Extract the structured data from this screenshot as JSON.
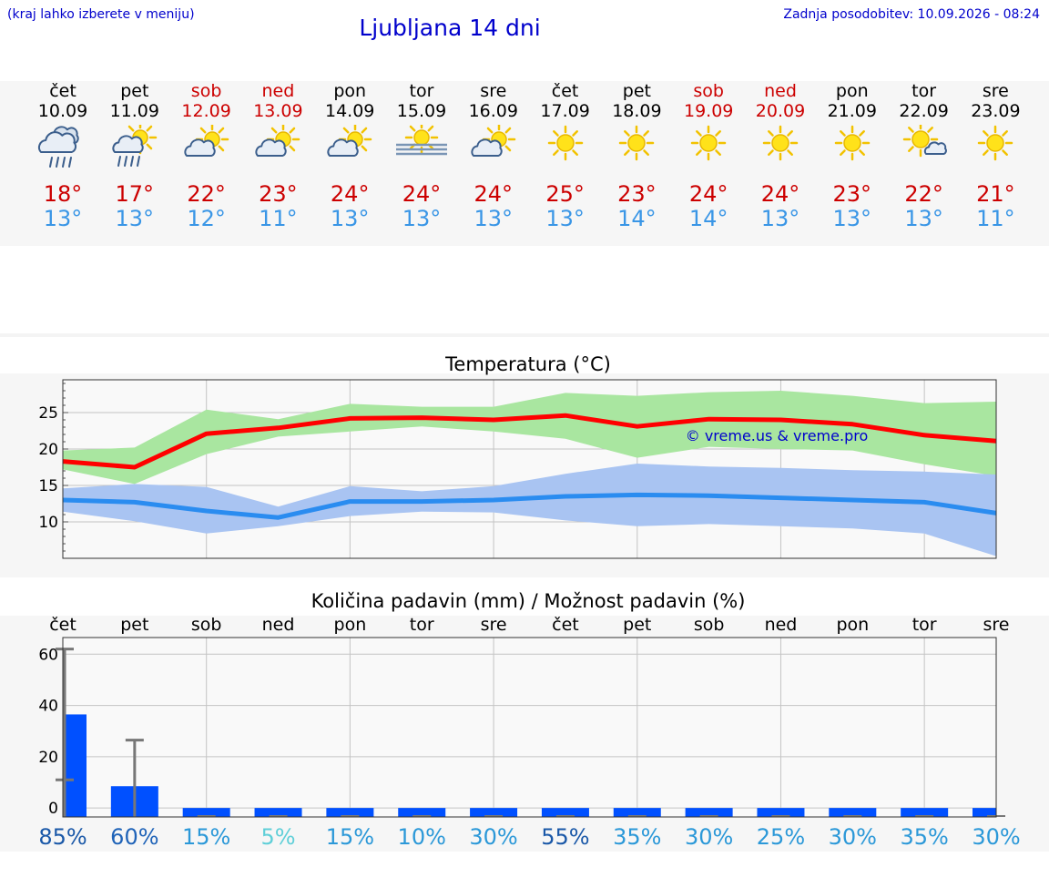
{
  "header": {
    "hint": "(kraj lahko izberete v meniju)",
    "title": "Ljubljana 14 dni",
    "updated": "Zadnja posodobitev: 10.09.2026 - 08:24"
  },
  "days": [
    {
      "name": "čet",
      "date": "10.09",
      "weekend": false,
      "icon": "rain-cloud-icon",
      "max": "18°",
      "min": "13°"
    },
    {
      "name": "pet",
      "date": "11.09",
      "weekend": false,
      "icon": "sun-rain-icon",
      "max": "17°",
      "min": "13°"
    },
    {
      "name": "sob",
      "date": "12.09",
      "weekend": true,
      "icon": "sun-cloud-icon",
      "max": "22°",
      "min": "12°"
    },
    {
      "name": "ned",
      "date": "13.09",
      "weekend": true,
      "icon": "sun-cloud-icon",
      "max": "23°",
      "min": "11°"
    },
    {
      "name": "pon",
      "date": "14.09",
      "weekend": false,
      "icon": "sun-cloud-icon",
      "max": "24°",
      "min": "13°"
    },
    {
      "name": "tor",
      "date": "15.09",
      "weekend": false,
      "icon": "sun-fog-icon",
      "max": "24°",
      "min": "13°"
    },
    {
      "name": "sre",
      "date": "16.09",
      "weekend": false,
      "icon": "sun-cloud-icon",
      "max": "24°",
      "min": "13°"
    },
    {
      "name": "čet",
      "date": "17.09",
      "weekend": false,
      "icon": "sun-icon",
      "max": "25°",
      "min": "13°"
    },
    {
      "name": "pet",
      "date": "18.09",
      "weekend": false,
      "icon": "sun-icon",
      "max": "23°",
      "min": "14°"
    },
    {
      "name": "sob",
      "date": "19.09",
      "weekend": true,
      "icon": "sun-icon",
      "max": "24°",
      "min": "14°"
    },
    {
      "name": "ned",
      "date": "20.09",
      "weekend": true,
      "icon": "sun-icon",
      "max": "24°",
      "min": "13°"
    },
    {
      "name": "pon",
      "date": "21.09",
      "weekend": false,
      "icon": "sun-icon",
      "max": "23°",
      "min": "13°"
    },
    {
      "name": "tor",
      "date": "22.09",
      "weekend": false,
      "icon": "sun-small-cloud-icon",
      "max": "22°",
      "min": "13°"
    },
    {
      "name": "sre",
      "date": "23.09",
      "weekend": false,
      "icon": "sun-icon",
      "max": "21°",
      "min": "11°"
    }
  ],
  "colors": {
    "max_text": "#cc0000",
    "min_text": "#3a96e6",
    "max_line": "#ff0000",
    "max_band": "#a9e6a0",
    "min_line": "#2a8cf0",
    "min_band": "#a9c4f2",
    "bar": "#0050ff",
    "error_bar": "#777777",
    "watermark": "#0000cc"
  },
  "chart_data": [
    {
      "type": "line",
      "title": "Temperatura (°C)",
      "watermark": "© vreme.us & vreme.pro",
      "x": [
        "10.09",
        "11.09",
        "12.09",
        "13.09",
        "14.09",
        "15.09",
        "16.09",
        "17.09",
        "18.09",
        "19.09",
        "20.09",
        "21.09",
        "22.09",
        "23.09"
      ],
      "ylim": [
        5,
        29.5
      ],
      "yticks": [
        10,
        15,
        20,
        25
      ],
      "grid": true,
      "series": [
        {
          "key": "max",
          "values": [
            18.3,
            17.5,
            22.1,
            22.9,
            24.2,
            24.3,
            24.0,
            24.6,
            23.1,
            24.1,
            24.0,
            23.4,
            21.9,
            21.1
          ],
          "band_high": [
            19.8,
            20.2,
            25.4,
            24.1,
            26.2,
            25.8,
            25.8,
            27.7,
            27.3,
            27.8,
            28.0,
            27.3,
            26.3,
            26.5
          ],
          "band_low": [
            17.2,
            15.2,
            19.3,
            21.7,
            22.4,
            23.1,
            22.4,
            21.4,
            18.8,
            20.3,
            20.0,
            19.8,
            17.9,
            16.3
          ]
        },
        {
          "key": "min",
          "values": [
            13.0,
            12.7,
            11.5,
            10.6,
            12.8,
            12.8,
            13.0,
            13.5,
            13.7,
            13.6,
            13.3,
            13.0,
            12.7,
            11.2
          ],
          "band_high": [
            14.6,
            15.2,
            14.8,
            12.1,
            14.9,
            14.2,
            14.9,
            16.6,
            18.0,
            17.6,
            17.4,
            17.1,
            16.9,
            16.5
          ],
          "band_low": [
            11.4,
            10.1,
            8.4,
            9.4,
            10.8,
            11.4,
            11.3,
            10.2,
            9.4,
            9.7,
            9.4,
            9.1,
            8.4,
            5.3
          ]
        }
      ]
    },
    {
      "type": "bar",
      "title": "Količina padavin (mm) / Možnost padavin (%)",
      "categories": [
        "čet",
        "pet",
        "sob",
        "ned",
        "pon",
        "tor",
        "sre",
        "čet",
        "pet",
        "sob",
        "ned",
        "pon",
        "tor",
        "sre"
      ],
      "ylim": [
        -3.5,
        66.5
      ],
      "yticks": [
        0,
        20,
        40,
        60
      ],
      "grid": true,
      "values": [
        36.5,
        8.5,
        0,
        0,
        0,
        0,
        0,
        0,
        0,
        0,
        0,
        0,
        0,
        0
      ],
      "error_high": [
        62,
        26.5,
        0,
        0,
        0,
        0,
        0,
        0,
        0,
        0,
        0,
        0,
        0,
        0
      ],
      "error_low": [
        11,
        0,
        0,
        0,
        0,
        0,
        0,
        0,
        0,
        0,
        0,
        0,
        0,
        0
      ],
      "probability": [
        {
          "label": "85%",
          "color": "#1a58a8"
        },
        {
          "label": "60%",
          "color": "#1f63b8"
        },
        {
          "label": "15%",
          "color": "#2b98d8"
        },
        {
          "label": "5%",
          "color": "#5fcfd8"
        },
        {
          "label": "15%",
          "color": "#2b98d8"
        },
        {
          "label": "10%",
          "color": "#2b98d8"
        },
        {
          "label": "30%",
          "color": "#2b98d8"
        },
        {
          "label": "55%",
          "color": "#1a58a8"
        },
        {
          "label": "35%",
          "color": "#2b98d8"
        },
        {
          "label": "30%",
          "color": "#2b98d8"
        },
        {
          "label": "25%",
          "color": "#2b98d8"
        },
        {
          "label": "30%",
          "color": "#2b98d8"
        },
        {
          "label": "35%",
          "color": "#2b98d8"
        },
        {
          "label": "30%",
          "color": "#2b98d8"
        }
      ]
    }
  ]
}
